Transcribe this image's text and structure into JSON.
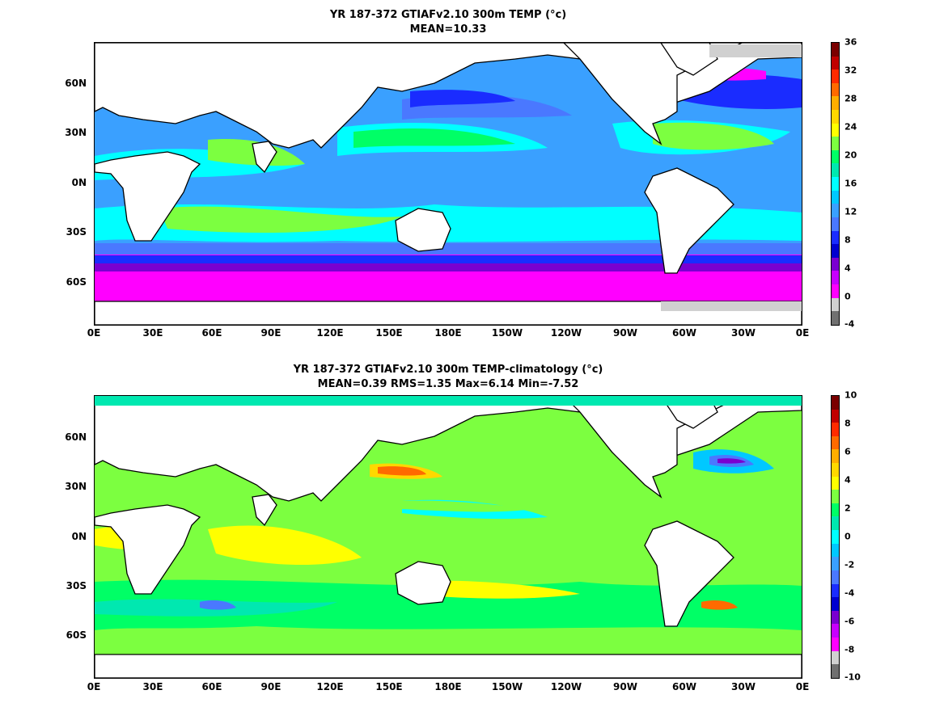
{
  "panels": [
    {
      "title_line1": "YR 187-372 GTIAFv2.10 300m TEMP (°c)",
      "title_line2": "MEAN=10.33",
      "colorbar_ticks": [
        "36",
        "32",
        "28",
        "24",
        "20",
        "16",
        "12",
        "8",
        "4",
        "0",
        "-4"
      ],
      "colorbar_colors": [
        "#7a0000",
        "#c00000",
        "#ff2a00",
        "#ff6a00",
        "#ffae00",
        "#ffd800",
        "#ffff00",
        "#7cff40",
        "#00ff66",
        "#00e8b0",
        "#00ffff",
        "#00c8ff",
        "#3aa0ff",
        "#4a78ff",
        "#1a2cff",
        "#0000d0",
        "#7a00d0",
        "#c800ff",
        "#ff00ff",
        "#d0d0d0",
        "#707070"
      ],
      "x_ticks": [
        "0E",
        "30E",
        "60E",
        "90E",
        "120E",
        "150E",
        "180E",
        "150W",
        "120W",
        "90W",
        "60W",
        "30W",
        "0E"
      ],
      "y_ticks": [
        "60N",
        "30N",
        "0N",
        "30S",
        "60S"
      ]
    },
    {
      "title_line1": "YR 187-372 GTIAFv2.10 300m TEMP-climatology (°c)",
      "title_line2": "MEAN=0.39   RMS=1.35   Max=6.14   Min=-7.52",
      "colorbar_ticks": [
        "10",
        "8",
        "6",
        "4",
        "2",
        "0",
        "-2",
        "-4",
        "-6",
        "-8",
        "-10"
      ],
      "colorbar_colors": [
        "#7a0000",
        "#c00000",
        "#ff2a00",
        "#ff6a00",
        "#ffae00",
        "#ffd800",
        "#ffff00",
        "#7cff40",
        "#00ff66",
        "#00e8b0",
        "#00ffff",
        "#00c8ff",
        "#3aa0ff",
        "#4a78ff",
        "#1a2cff",
        "#0000d0",
        "#7a00d0",
        "#c800ff",
        "#ff00ff",
        "#d0d0d0",
        "#707070"
      ],
      "x_ticks": [
        "0E",
        "30E",
        "60E",
        "90E",
        "120E",
        "150E",
        "180E",
        "150W",
        "120W",
        "90W",
        "60W",
        "30W",
        "0E"
      ],
      "y_ticks": [
        "60N",
        "30N",
        "0N",
        "30S",
        "60S"
      ]
    }
  ]
}
